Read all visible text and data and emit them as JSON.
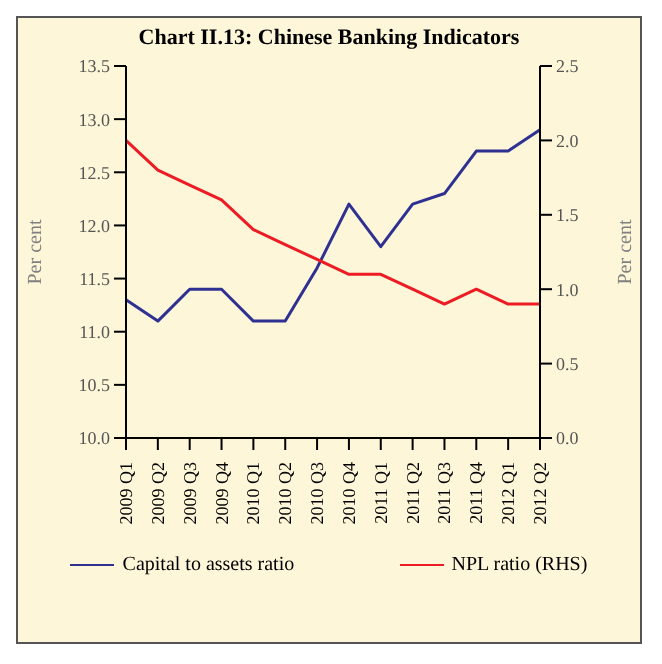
{
  "chart_data": {
    "type": "line",
    "title": "Chart II.13: Chinese Banking Indicators",
    "ylabel": "Per cent",
    "y2label": "Per cent",
    "categories": [
      "2009 Q1",
      "2009 Q2",
      "2009 Q3",
      "2009 Q4",
      "2010 Q1",
      "2010 Q2",
      "2010 Q3",
      "2010 Q4",
      "2011 Q1",
      "2011 Q2",
      "2011 Q3",
      "2011 Q4",
      "2012 Q1",
      "2012 Q2"
    ],
    "series": [
      {
        "name": "Capital to assets ratio",
        "color": "#2e3192",
        "values": [
          11.3,
          11.1,
          11.4,
          11.4,
          11.1,
          11.1,
          11.6,
          12.2,
          11.8,
          12.2,
          12.3,
          12.7,
          12.7,
          12.9
        ]
      },
      {
        "name": "NPL ratio (RHS)",
        "color": "#ed1c24",
        "axis": "y2",
        "values": [
          2.0,
          1.8,
          1.7,
          1.6,
          1.4,
          1.3,
          1.2,
          1.1,
          1.1,
          1.0,
          0.9,
          1.0,
          0.9,
          0.9
        ]
      }
    ],
    "ylim": [
      10,
      13.5
    ],
    "yticks": [
      {
        "value": 10,
        "label": "10.0"
      },
      10.5,
      {
        "value": 11,
        "label": "11.0"
      },
      11.5,
      {
        "value": 12,
        "label": "12.0"
      },
      12.5,
      {
        "value": 13,
        "label": "13.0"
      },
      13.5
    ],
    "y2lim": [
      0,
      2.5
    ],
    "y2ticks": [
      {
        "value": 0,
        "label": "0.0"
      },
      0.5,
      {
        "value": 1,
        "label": "1.0"
      },
      1.5,
      {
        "value": 2,
        "label": "2.0"
      },
      2.5
    ],
    "legend": "bottom",
    "marker": "none",
    "line_style": "solid",
    "grid": false
  }
}
